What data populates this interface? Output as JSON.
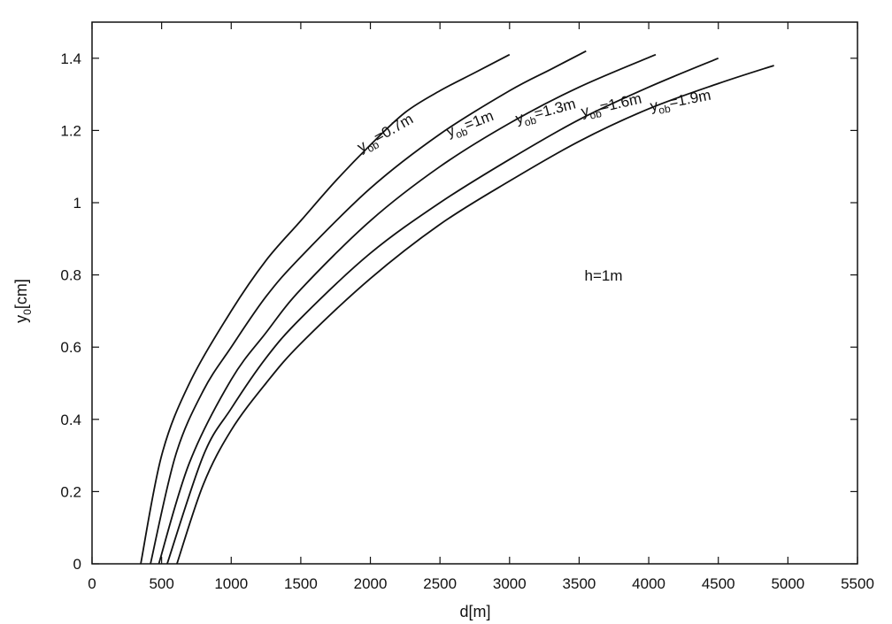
{
  "chart_data": {
    "type": "line",
    "title": "",
    "xlabel": "d[m]",
    "ylabel_main": "y",
    "ylabel_sub": "0",
    "ylabel_unit": "[cm]",
    "xlim": [
      0,
      5500
    ],
    "ylim": [
      0,
      1.5
    ],
    "xticks": [
      0,
      500,
      1000,
      1500,
      2000,
      2500,
      3000,
      3500,
      4000,
      4500,
      5000,
      5500
    ],
    "yticks": [
      0,
      0.2,
      0.4,
      0.6,
      0.8,
      1,
      1.2,
      1.4
    ],
    "xtick_labels": [
      "0",
      "500",
      "1000",
      "1500",
      "2000",
      "2500",
      "3000",
      "3500",
      "4000",
      "4500",
      "5000",
      "5500"
    ],
    "ytick_labels": [
      "0",
      "0.2",
      "0.4",
      "0.6",
      "0.8",
      "1",
      "1.2",
      "1.4"
    ],
    "grid": false,
    "annotation": "h=1m",
    "series": [
      {
        "label_main": "y",
        "label_sub": "ob",
        "label_value": "=0.7m",
        "x": [
          350,
          500,
          700,
          1000,
          1250,
          1500,
          1750,
          2000,
          2250,
          2500,
          2750,
          3000
        ],
        "y": [
          0,
          0.3,
          0.5,
          0.7,
          0.84,
          0.95,
          1.06,
          1.16,
          1.25,
          1.31,
          1.36,
          1.41
        ]
      },
      {
        "label_main": "y",
        "label_sub": "ob",
        "label_value": "=1m",
        "x": [
          420,
          600,
          800,
          1000,
          1250,
          1500,
          2000,
          2500,
          3000,
          3300,
          3550
        ],
        "y": [
          0,
          0.3,
          0.48,
          0.6,
          0.74,
          0.85,
          1.04,
          1.19,
          1.31,
          1.37,
          1.42
        ]
      },
      {
        "label_main": "y",
        "label_sub": "ob",
        "label_value": "=1.3m",
        "x": [
          480,
          700,
          1000,
          1250,
          1500,
          2000,
          2500,
          3000,
          3500,
          4050
        ],
        "y": [
          0,
          0.28,
          0.51,
          0.64,
          0.76,
          0.95,
          1.1,
          1.22,
          1.32,
          1.41
        ]
      },
      {
        "label_main": "y",
        "label_sub": "ob",
        "label_value": "=1.6m",
        "x": [
          540,
          800,
          1000,
          1250,
          1500,
          2000,
          2500,
          3000,
          3500,
          4000,
          4500
        ],
        "y": [
          0,
          0.3,
          0.43,
          0.57,
          0.68,
          0.86,
          1.0,
          1.12,
          1.23,
          1.32,
          1.4
        ]
      },
      {
        "label_main": "y",
        "label_sub": "ob",
        "label_value": "=1.9m",
        "x": [
          610,
          800,
          1000,
          1250,
          1500,
          2000,
          2500,
          3000,
          3500,
          4000,
          4500,
          4900
        ],
        "y": [
          0,
          0.22,
          0.37,
          0.5,
          0.61,
          0.79,
          0.94,
          1.06,
          1.17,
          1.26,
          1.33,
          1.38
        ]
      }
    ]
  }
}
